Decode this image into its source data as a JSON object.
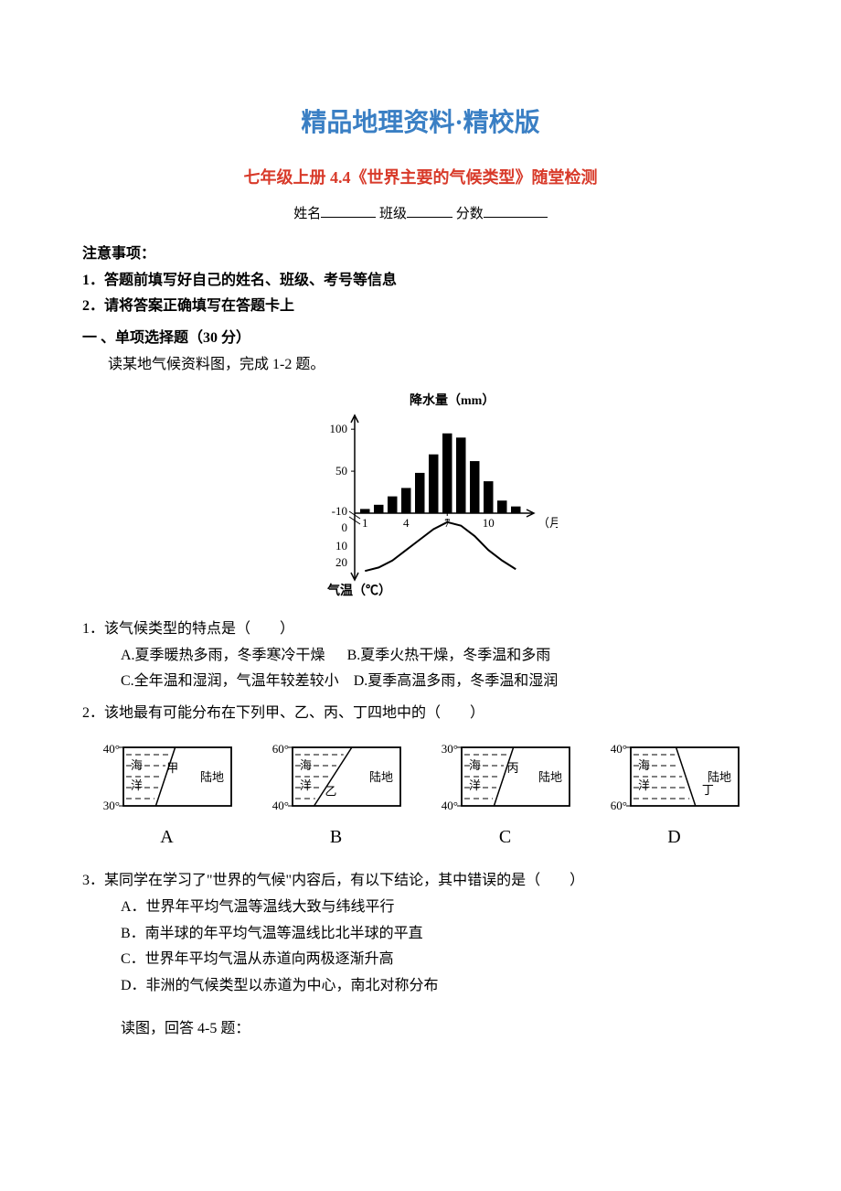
{
  "header": {
    "main_title": "精品地理资料·精校版",
    "main_title_color": "#3a7fc4",
    "sub_title": "七年级上册 4.4《世界主要的气候类型》随堂检测",
    "sub_title_color": "#d83a2a",
    "name_label": "姓名",
    "class_label": "班级",
    "score_label": "分数"
  },
  "notes": {
    "heading": "注意事项：",
    "line1": "1．答题前填写好自己的姓名、班级、考号等信息",
    "line2": "2．请将答案正确填写在答题卡上"
  },
  "section1": {
    "heading": "一 、单项选择题（30 分）",
    "read_intro": "读某地气候资料图，完成 1-2 题。"
  },
  "climate_chart": {
    "type": "composite",
    "precip_label": "降水量（mm）",
    "temp_label": "气温（℃）",
    "month_label": "（月）",
    "y_precip_ticks": [
      50,
      100
    ],
    "y_temp_ticks_visible": [
      "-10",
      "0",
      "10",
      "20"
    ],
    "x_tick_labels": [
      "1",
      "4",
      "7",
      "10"
    ],
    "bar_values": [
      5,
      10,
      20,
      30,
      48,
      70,
      95,
      90,
      62,
      38,
      15,
      8
    ],
    "bar_color": "#000000",
    "temp_line": [
      20,
      18,
      14,
      8,
      2,
      -4,
      -8,
      -6,
      0,
      8,
      14,
      19
    ],
    "temp_line_note": "curve is below 0 around months 6-8 (winter), above 0 otherwise; southern hemisphere pattern",
    "temp_line_color": "#000000",
    "background_color": "#ffffff",
    "axis_color": "#000000",
    "font_size_axis": 13,
    "font_size_label": 14
  },
  "q1": {
    "stem": "1．该气候类型的特点是（　　）",
    "optA": "A.夏季暖热多雨，冬季寒冷干燥",
    "optB": "B.夏季火热干燥，冬季温和多雨",
    "optC": "C.全年温和湿润，气温年较差较小",
    "optD": "D.夏季高温多雨，冬季温和湿润"
  },
  "q2": {
    "stem": "2．该地最有可能分布在下列甲、乙、丙、丁四地中的（　　）"
  },
  "maps": {
    "type": "schematic-maps",
    "background_color": "#ffffff",
    "border_color": "#000000",
    "water_pattern_color": "#000000",
    "text_color": "#000000",
    "font_size": 13,
    "cells": [
      {
        "letter": "A",
        "top_lat": "40°",
        "bot_lat": "30°",
        "ocean": "海洋",
        "land": "陆地",
        "marker": "甲",
        "marker_side": "mid-right-in-ocean"
      },
      {
        "letter": "B",
        "top_lat": "60°",
        "bot_lat": "40°",
        "ocean": "海洋",
        "land": "陆地",
        "marker": "乙",
        "marker_side": "lower-left"
      },
      {
        "letter": "C",
        "top_lat": "30°",
        "bot_lat": "40°",
        "ocean": "海洋",
        "land": "陆地",
        "marker": "丙",
        "marker_side": "mid"
      },
      {
        "letter": "D",
        "top_lat": "40°",
        "bot_lat": "60°",
        "ocean": "海洋",
        "land": "陆地",
        "marker": "丁",
        "marker_side": "lower-right"
      }
    ]
  },
  "q3": {
    "stem": "3．某同学在学习了\"世界的气候\"内容后，有以下结论，其中错误的是（　　）",
    "optA": "A．世界年平均气温等温线大致与纬线平行",
    "optB": "B．南半球的年平均气温等温线比北半球的平直",
    "optC": "C．世界年平均气温从赤道向两极逐渐升高",
    "optD": "D．非洲的气候类型以赤道为中心，南北对称分布"
  },
  "final": {
    "text": "读图，回答 4-5 题："
  }
}
